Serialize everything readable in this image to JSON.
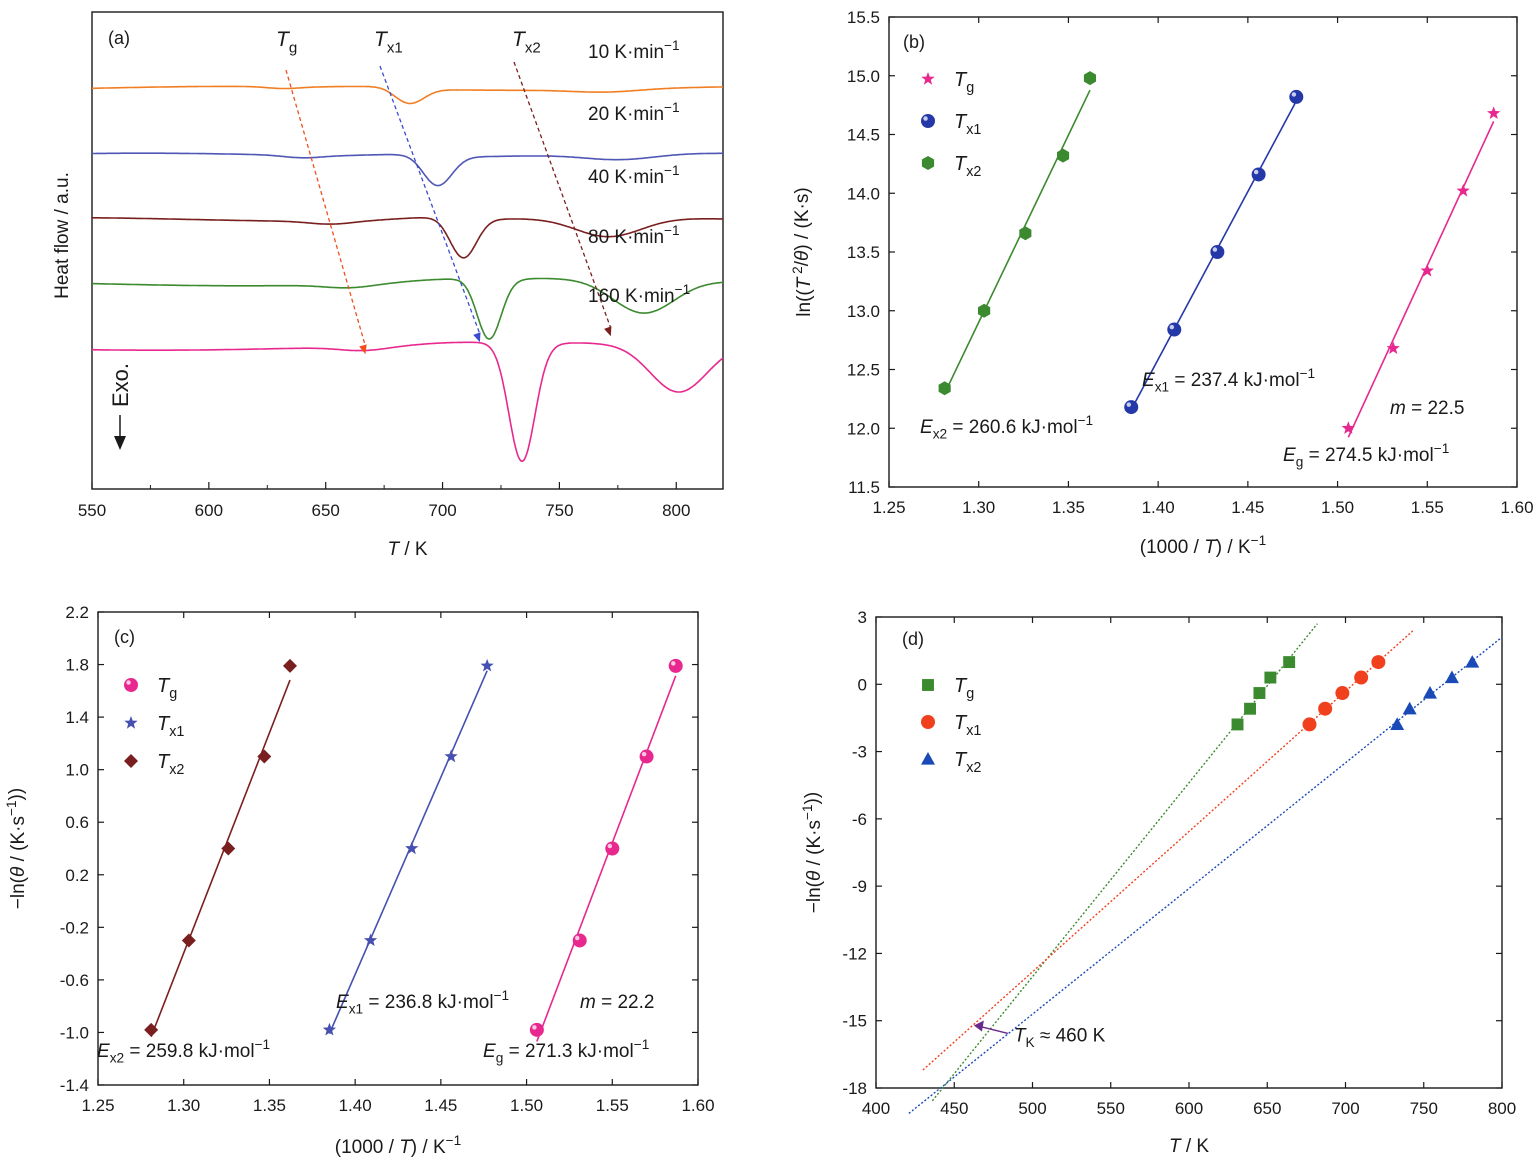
{
  "chart_data": [
    {
      "panel": "a",
      "type": "line",
      "panel_label": "(a)",
      "xlabel_var": "T",
      "xlabel_unit": " / K",
      "ylabel": "Heat flow / a.u.",
      "exo_label": "Exo.",
      "xlim": [
        550,
        820
      ],
      "xticks": [
        550,
        600,
        650,
        700,
        750,
        800
      ],
      "series": [
        {
          "name": "10 K·min−1",
          "rate": "10",
          "color": "#f07f23",
          "offset": 0.84,
          "features": {
            "g": [
              632,
              0.004,
              7
            ],
            "x1": [
              686,
              0.03,
              6
            ],
            "x2": [
              770,
              0.006,
              14
            ]
          }
        },
        {
          "name": "20 K·min−1",
          "rate": "20",
          "color": "#4f56b5",
          "offset": 0.7,
          "features": {
            "g": [
              640,
              0.005,
              8
            ],
            "x1": [
              698,
              0.06,
              6
            ],
            "x2": [
              776,
              0.012,
              15
            ]
          }
        },
        {
          "name": "40 K·min−1",
          "rate": "40",
          "color": "#7a1f1f",
          "offset": 0.565,
          "features": {
            "g": [
              652,
              0.006,
              9
            ],
            "x1": [
              709,
              0.08,
              5.5
            ],
            "x2": [
              771,
              0.04,
              14
            ]
          }
        },
        {
          "name": "80 K·min−1",
          "rate": "80",
          "color": "#3c8a2f",
          "offset": 0.43,
          "features": {
            "g": [
              660,
              0.007,
              10
            ],
            "x1": [
              720,
              0.12,
              5
            ],
            "x2": [
              786,
              0.07,
              13
            ]
          }
        },
        {
          "name": "160 K·min−1",
          "rate": "160",
          "color": "#e8288f",
          "offset": 0.295,
          "features": {
            "g": [
              666,
              0.008,
              10
            ],
            "x1": [
              734,
              0.24,
              5.5
            ],
            "x2": [
              801,
              0.1,
              12
            ]
          }
        }
      ],
      "label_colors": [
        "#f07f23",
        "#4f56b5",
        "#e07020",
        "#3c8a2f",
        "#e8288f"
      ],
      "guide_labels": [
        {
          "base": "T",
          "sub": "g"
        },
        {
          "base": "T",
          "sub": "x1"
        },
        {
          "base": "T",
          "sub": "x2"
        }
      ],
      "guide_colors": [
        "#f0501e",
        "#3a4bd0",
        "#7a1f1f"
      ]
    },
    {
      "panel": "b",
      "type": "scatter",
      "panel_label": "(b)",
      "xlabel": "(1000 / T) / K−1",
      "ylabel": "ln((T 2/θ) / (K·s))",
      "xlim": [
        1.25,
        1.6
      ],
      "ylim": [
        11.5,
        15.5
      ],
      "xticks": [
        1.25,
        1.3,
        1.35,
        1.4,
        1.45,
        1.5,
        1.55,
        1.6
      ],
      "yticks": [
        11.5,
        12.0,
        12.5,
        13.0,
        13.5,
        14.0,
        14.5,
        15.0,
        15.5
      ],
      "series": [
        {
          "name": "Tg",
          "sub": "g",
          "marker": "star",
          "color": "#e8288f",
          "x": [
            1.506,
            1.531,
            1.55,
            1.57,
            1.587
          ],
          "y": [
            12.0,
            12.68,
            13.34,
            14.02,
            14.68
          ]
        },
        {
          "name": "Tx1",
          "sub": "x1",
          "marker": "sphere",
          "color": "#2438a8",
          "x": [
            1.385,
            1.409,
            1.433,
            1.456,
            1.477
          ],
          "y": [
            12.18,
            12.84,
            13.5,
            14.16,
            14.82
          ]
        },
        {
          "name": "Tx2",
          "sub": "x2",
          "marker": "hexagon",
          "color": "#3c8a2f",
          "x": [
            1.281,
            1.303,
            1.326,
            1.347,
            1.362
          ],
          "y": [
            12.34,
            13.0,
            13.66,
            14.32,
            14.98
          ]
        }
      ],
      "annotations": [
        {
          "base": "E",
          "sub": "x2",
          "value": " = 260.6 kJ·mol",
          "sup": "−1",
          "color": "#3c8a2f"
        },
        {
          "base": "E",
          "sub": "x1",
          "value": " = 237.4 kJ·mol",
          "sup": "−1",
          "color": "#2438a8"
        },
        {
          "base": "E",
          "sub": "g",
          "value": " = 274.5 kJ·mol",
          "sup": "−1",
          "color": "#e8288f"
        },
        {
          "base": "m",
          "sub": "",
          "value": " = 22.5",
          "sup": "",
          "color": "#f0501e"
        }
      ]
    },
    {
      "panel": "c",
      "type": "scatter",
      "panel_label": "(c)",
      "xlabel": "(1000 / T) / K−1",
      "ylabel": "−ln(θ / (K·s−1))",
      "xlim": [
        1.25,
        1.6
      ],
      "ylim": [
        -1.4,
        2.2
      ],
      "xticks": [
        1.25,
        1.3,
        1.35,
        1.4,
        1.45,
        1.5,
        1.55,
        1.6
      ],
      "yticks": [
        -1.4,
        -1.0,
        -0.6,
        -0.2,
        0.2,
        0.6,
        1.0,
        1.4,
        1.8,
        2.2
      ],
      "ytick_labels": [
        "-1.4",
        "-1.0",
        "-0.6",
        "-0.2",
        "0.2",
        "0.6",
        "1.0",
        "1.4",
        "1.8",
        "2.2"
      ],
      "series": [
        {
          "name": "Tg",
          "sub": "g",
          "marker": "sphere",
          "color": "#e8288f",
          "x": [
            1.506,
            1.531,
            1.55,
            1.57,
            1.587
          ],
          "y": [
            -0.98,
            -0.3,
            0.4,
            1.1,
            1.79
          ]
        },
        {
          "name": "Tx1",
          "sub": "x1",
          "marker": "star",
          "color": "#4650b0",
          "x": [
            1.385,
            1.409,
            1.433,
            1.456,
            1.477
          ],
          "y": [
            -0.98,
            -0.3,
            0.4,
            1.1,
            1.79
          ]
        },
        {
          "name": "Tx2",
          "sub": "x2",
          "marker": "diamond",
          "color": "#7a1f1f",
          "x": [
            1.281,
            1.303,
            1.326,
            1.347,
            1.362
          ],
          "y": [
            -0.98,
            -0.3,
            0.4,
            1.1,
            1.79
          ]
        }
      ],
      "annotations": [
        {
          "base": "E",
          "sub": "x2",
          "value": " = 259.8 kJ·mol",
          "sup": "−1",
          "color": "#7a1f1f"
        },
        {
          "base": "E",
          "sub": "x1",
          "value": " = 236.8 kJ·mol",
          "sup": "−1",
          "color": "#4650b0"
        },
        {
          "base": "E",
          "sub": "g",
          "value": " = 271.3 kJ·mol",
          "sup": "−1",
          "color": "#e8288f"
        },
        {
          "base": "m",
          "sub": "",
          "value": " = 22.2",
          "sup": "",
          "color": "#f0501e"
        }
      ]
    },
    {
      "panel": "d",
      "type": "scatter",
      "panel_label": "(d)",
      "xlabel": "T / K",
      "ylabel": "−ln(θ / (K·s−1))",
      "xlim": [
        400,
        800
      ],
      "ylim": [
        -18,
        3
      ],
      "xticks": [
        400,
        450,
        500,
        550,
        600,
        650,
        700,
        750,
        800
      ],
      "yticks": [
        -18,
        -15,
        -12,
        -9,
        -6,
        -3,
        0,
        3
      ],
      "series": [
        {
          "name": "Tg",
          "sub": "g",
          "marker": "square",
          "color": "#3c8a2f",
          "x": [
            631,
            639,
            645,
            652,
            664
          ],
          "y": [
            -1.79,
            -1.09,
            -0.39,
            0.3,
            0.99
          ],
          "fit_x": [
            436,
            682
          ]
        },
        {
          "name": "Tx1",
          "sub": "x1",
          "marker": "circle",
          "color": "#f0401e",
          "x": [
            677,
            687,
            698,
            710,
            721
          ],
          "y": [
            -1.79,
            -1.09,
            -0.39,
            0.3,
            0.99
          ],
          "fit_x": [
            430,
            743
          ]
        },
        {
          "name": "Tx2",
          "sub": "x2",
          "marker": "triangle",
          "color": "#1a4ab8",
          "x": [
            733,
            741,
            754,
            768,
            781
          ],
          "y": [
            -1.79,
            -1.09,
            -0.39,
            0.3,
            0.99
          ],
          "fit_x": [
            421,
            800
          ]
        }
      ],
      "annotation": {
        "base": "T",
        "sub": "K",
        "value": " ≈ 460 K",
        "color": "#6a2a8a",
        "x": 460,
        "y": -15.3
      }
    }
  ]
}
